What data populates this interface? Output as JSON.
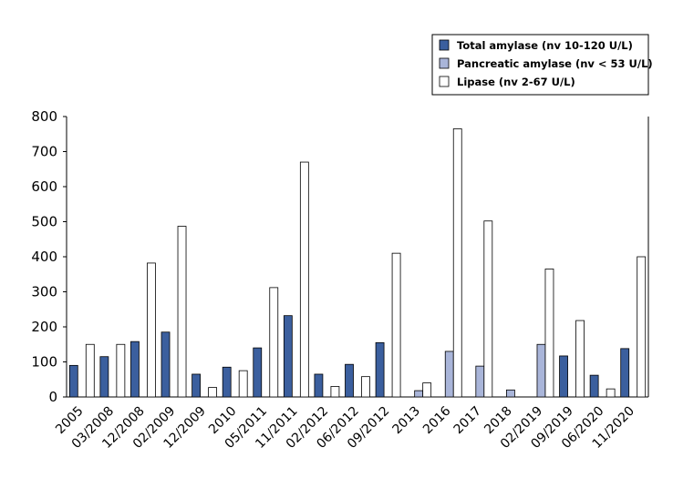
{
  "chart_data": {
    "type": "bar",
    "title": "",
    "xlabel": "",
    "ylabel": "",
    "ylim": [
      0,
      800
    ],
    "yticks": [
      0,
      100,
      200,
      300,
      400,
      500,
      600,
      700,
      800
    ],
    "grid": false,
    "legend_position": "top-right",
    "categories": [
      "2005",
      "03/2008",
      "12/2008",
      "02/2009",
      "12/2009",
      "2010",
      "05/2011",
      "11/2011",
      "02/2012",
      "06/2012",
      "09/2012",
      "2013",
      "2016",
      "2017",
      "2018",
      "02/2019",
      "09/2019",
      "06/2020",
      "11/2020"
    ],
    "series": [
      {
        "name": "Total amylase (nv 10-120 U/L)",
        "color": "#3b5f9e",
        "values": [
          90,
          115,
          158,
          185,
          65,
          85,
          140,
          232,
          65,
          93,
          155,
          null,
          null,
          null,
          null,
          null,
          117,
          62,
          138
        ]
      },
      {
        "name": "Pancreatic amylase (nv < 53 U/L)",
        "color": "#a9b5d9",
        "values": [
          null,
          null,
          null,
          null,
          null,
          null,
          null,
          null,
          null,
          null,
          null,
          18,
          130,
          88,
          20,
          150,
          null,
          null,
          null
        ]
      },
      {
        "name": "Lipase (nv 2-67 U/L)",
        "color": "#ffffff",
        "values": [
          150,
          150,
          382,
          487,
          27,
          75,
          312,
          670,
          30,
          58,
          410,
          40,
          765,
          502,
          null,
          365,
          218,
          23,
          400
        ]
      }
    ]
  }
}
